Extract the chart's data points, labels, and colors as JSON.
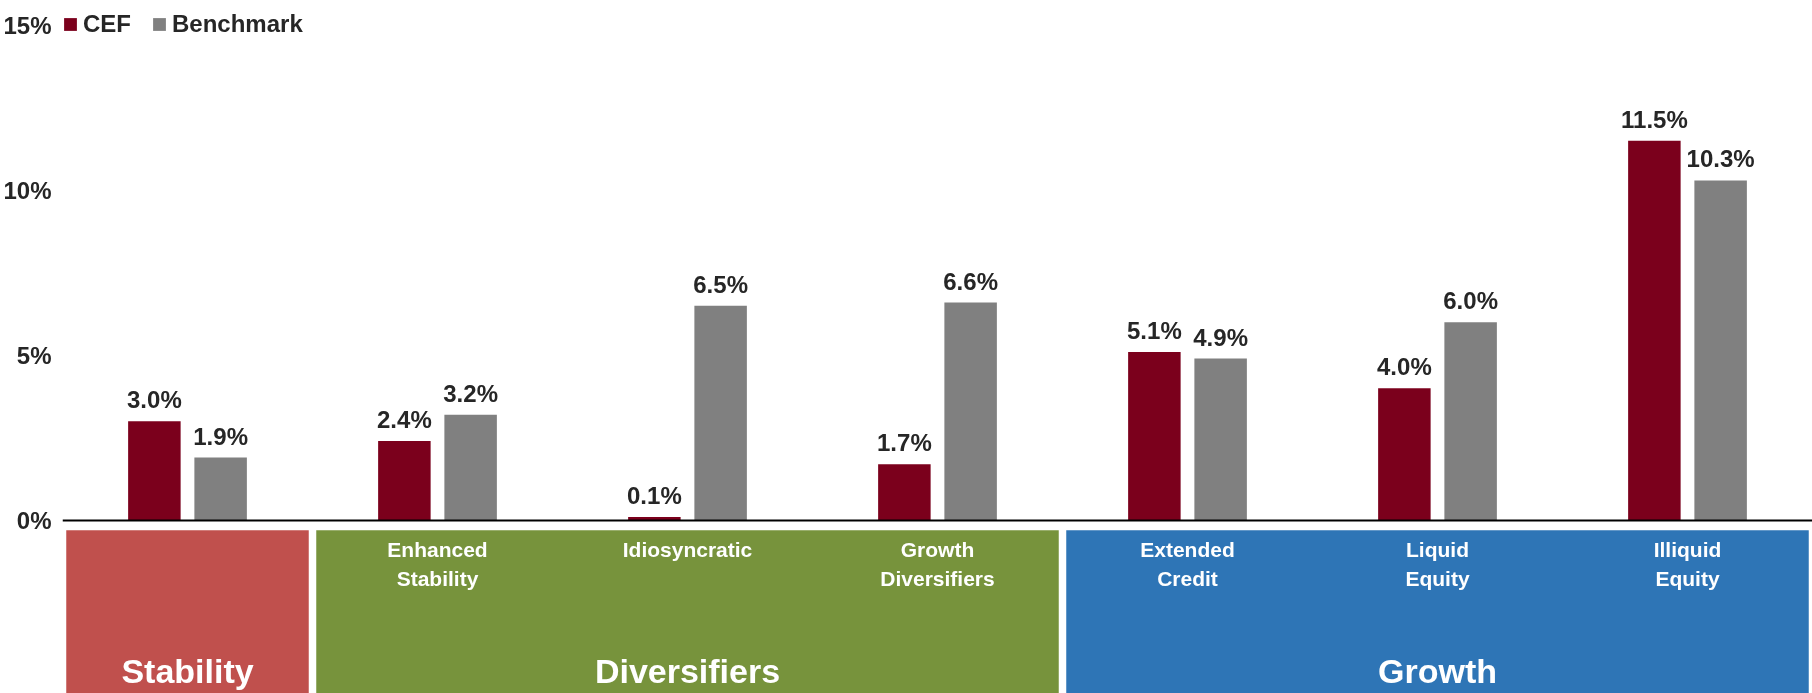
{
  "chart_data": {
    "type": "bar",
    "categories": [
      null,
      "Enhanced\nStability",
      "Idiosyncratic",
      "Growth\nDiversifiers",
      "Extended\nCredit",
      "Liquid\nEquity",
      "Illiquid\nEquity"
    ],
    "series": [
      {
        "name": "CEF",
        "color": "#7b001c",
        "values": [
          3.0,
          2.4,
          0.1,
          1.7,
          5.1,
          4.0,
          11.5
        ],
        "value_labels": [
          "3.0%",
          "2.4%",
          "0.1%",
          "1.7%",
          "5.1%",
          "4.0%",
          "11.5%"
        ]
      },
      {
        "name": "Benchmark",
        "color": "#808080",
        "values": [
          1.9,
          3.2,
          6.5,
          6.6,
          4.9,
          6.0,
          10.3
        ],
        "value_labels": [
          "1.9%",
          "3.2%",
          "6.5%",
          "6.6%",
          "4.9%",
          "6.0%",
          "10.3%"
        ]
      }
    ],
    "ylim": [
      0,
      15
    ],
    "yticks": [
      {
        "value": 0,
        "label": "0%"
      },
      {
        "value": 5,
        "label": "5%"
      },
      {
        "value": 10,
        "label": "10%"
      },
      {
        "value": 15,
        "label": "15%"
      }
    ],
    "annotations": [
      "Stability",
      "Diversifiers",
      "Growth"
    ],
    "grid": false,
    "legend": "top left"
  }
}
